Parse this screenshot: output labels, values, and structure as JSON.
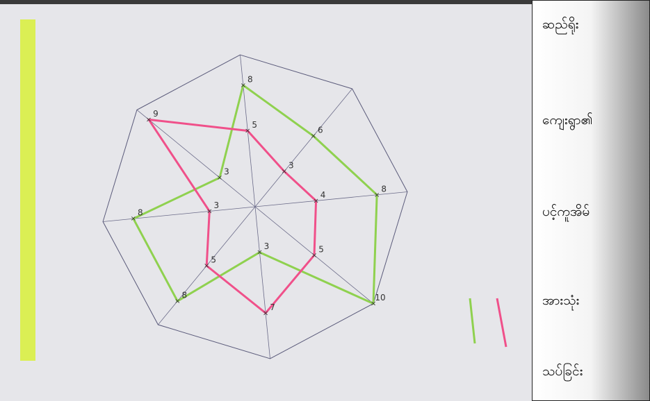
{
  "chart_data": {
    "type": "radar",
    "rlim": [
      0,
      10
    ],
    "series": [
      {
        "color": "#8fd14f",
        "values": [
          8,
          6,
          8,
          10,
          3,
          8,
          8,
          3
        ]
      },
      {
        "color": "#f0508a",
        "values": [
          5,
          3,
          4,
          5,
          7,
          5,
          3,
          9
        ]
      }
    ]
  },
  "sidebar": {
    "items": [
      "ဆည်ရိုး",
      "ကျေးရွာ၏",
      "ပင့်ကူအိမ်",
      "အားသုံး",
      "သပ်ခြင်း"
    ]
  }
}
